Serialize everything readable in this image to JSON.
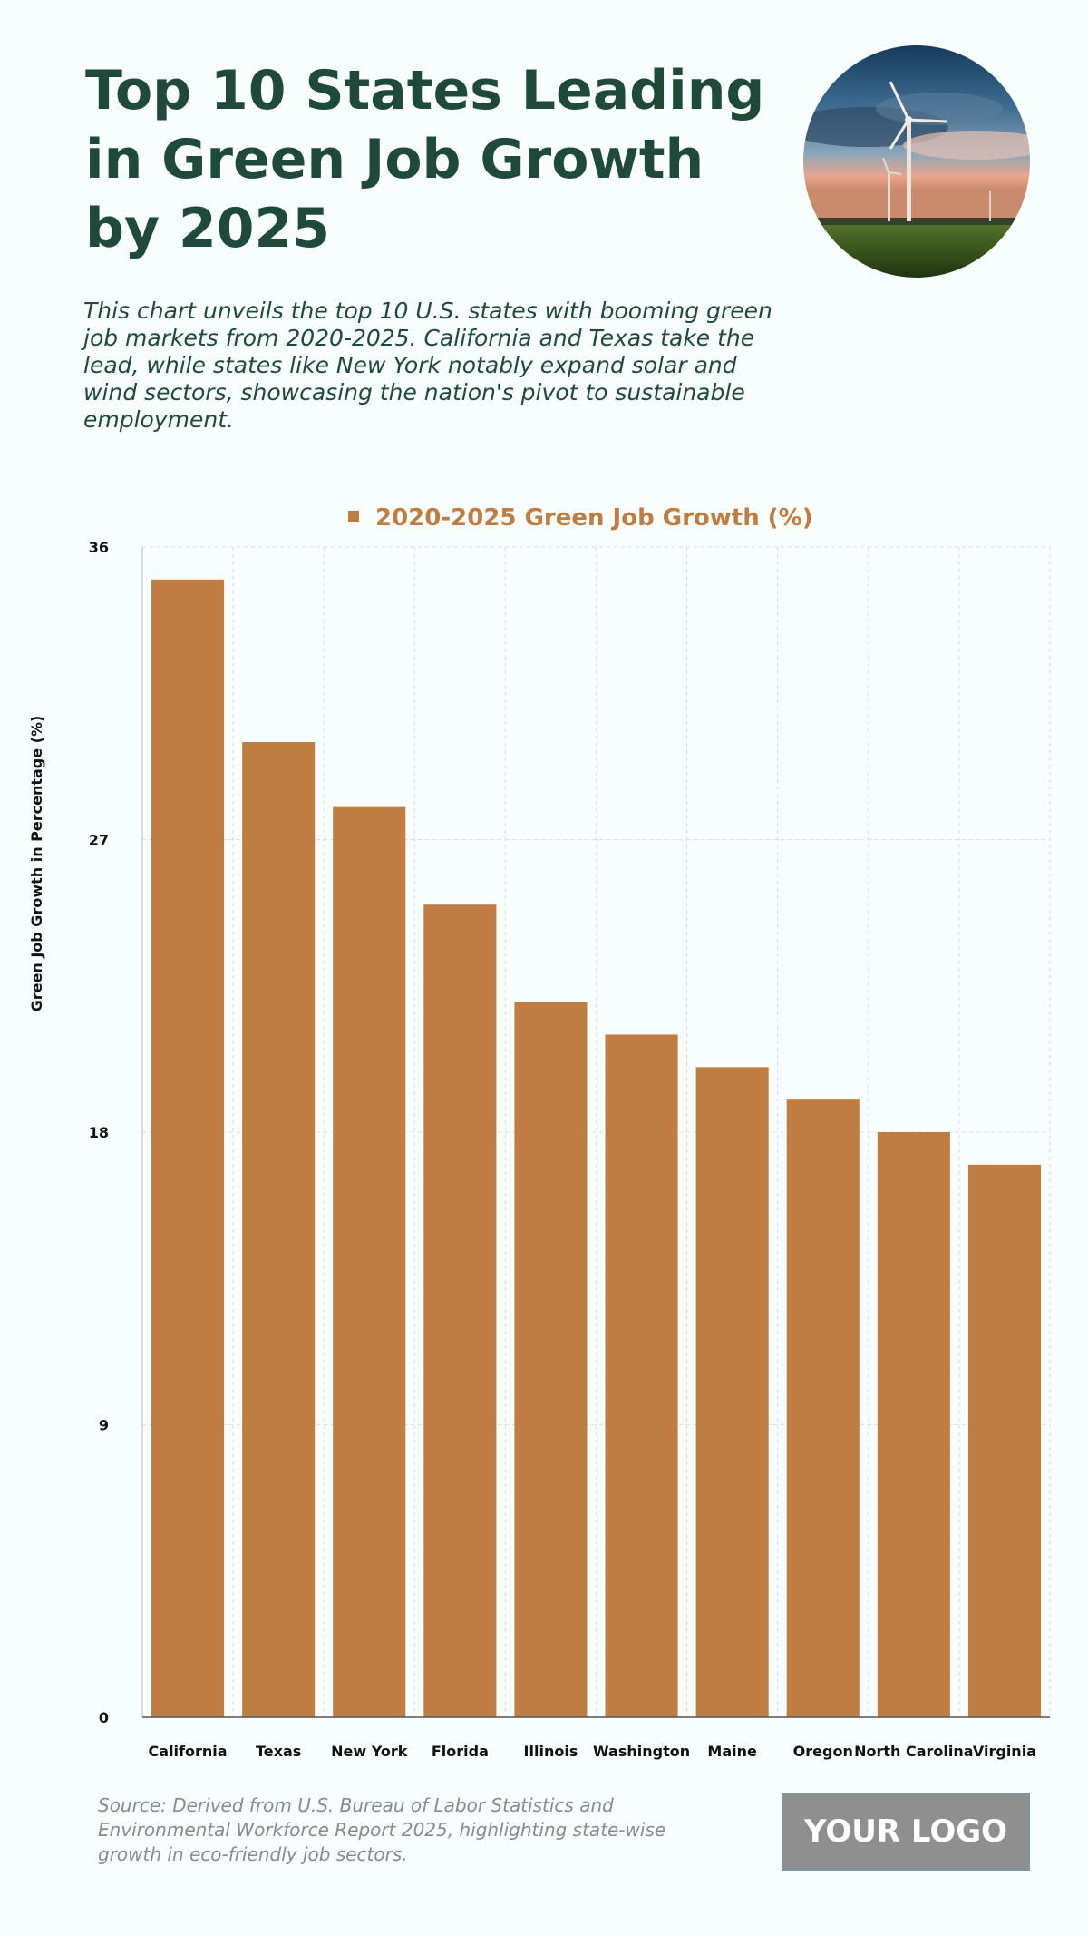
{
  "header": {
    "title": "Top 10 States Leading in Green Job Growth by 2025",
    "subtitle": "This chart unveils the top 10 U.S. states with booming green job markets from 2020-2025. California and Texas take the lead, while states like New York notably expand solar and wind sectors, showcasing the nation's pivot to sustainable employment.",
    "hero_icon": "wind-turbine-photo-icon"
  },
  "footer": {
    "source": "Source: Derived from U.S. Bureau of Labor Statistics and Environmental Workforce Report 2025, highlighting state-wise growth in eco-friendly job sectors.",
    "logo": "YOUR LOGO"
  },
  "chart_data": {
    "type": "bar",
    "categories": [
      "California",
      "Texas",
      "New York",
      "Florida",
      "Illinois",
      "Washington",
      "Maine",
      "Oregon",
      "North Carolina",
      "Virginia"
    ],
    "series": [
      {
        "name": "2020-2025 Green Job Growth (%)",
        "values": [
          35,
          30,
          28,
          25,
          22,
          21,
          20,
          19,
          18,
          17
        ]
      }
    ],
    "ylabel": "Green Job Growth in Percentage (%)",
    "xlabel": "",
    "ylim": [
      0,
      36
    ],
    "yticks": [
      0,
      9,
      18,
      27,
      36
    ],
    "grid": true,
    "legend": "top-center",
    "colors": {
      "bar": "#c07d41",
      "text": "#1f4a3a",
      "grid": "#d8dcdb"
    }
  }
}
